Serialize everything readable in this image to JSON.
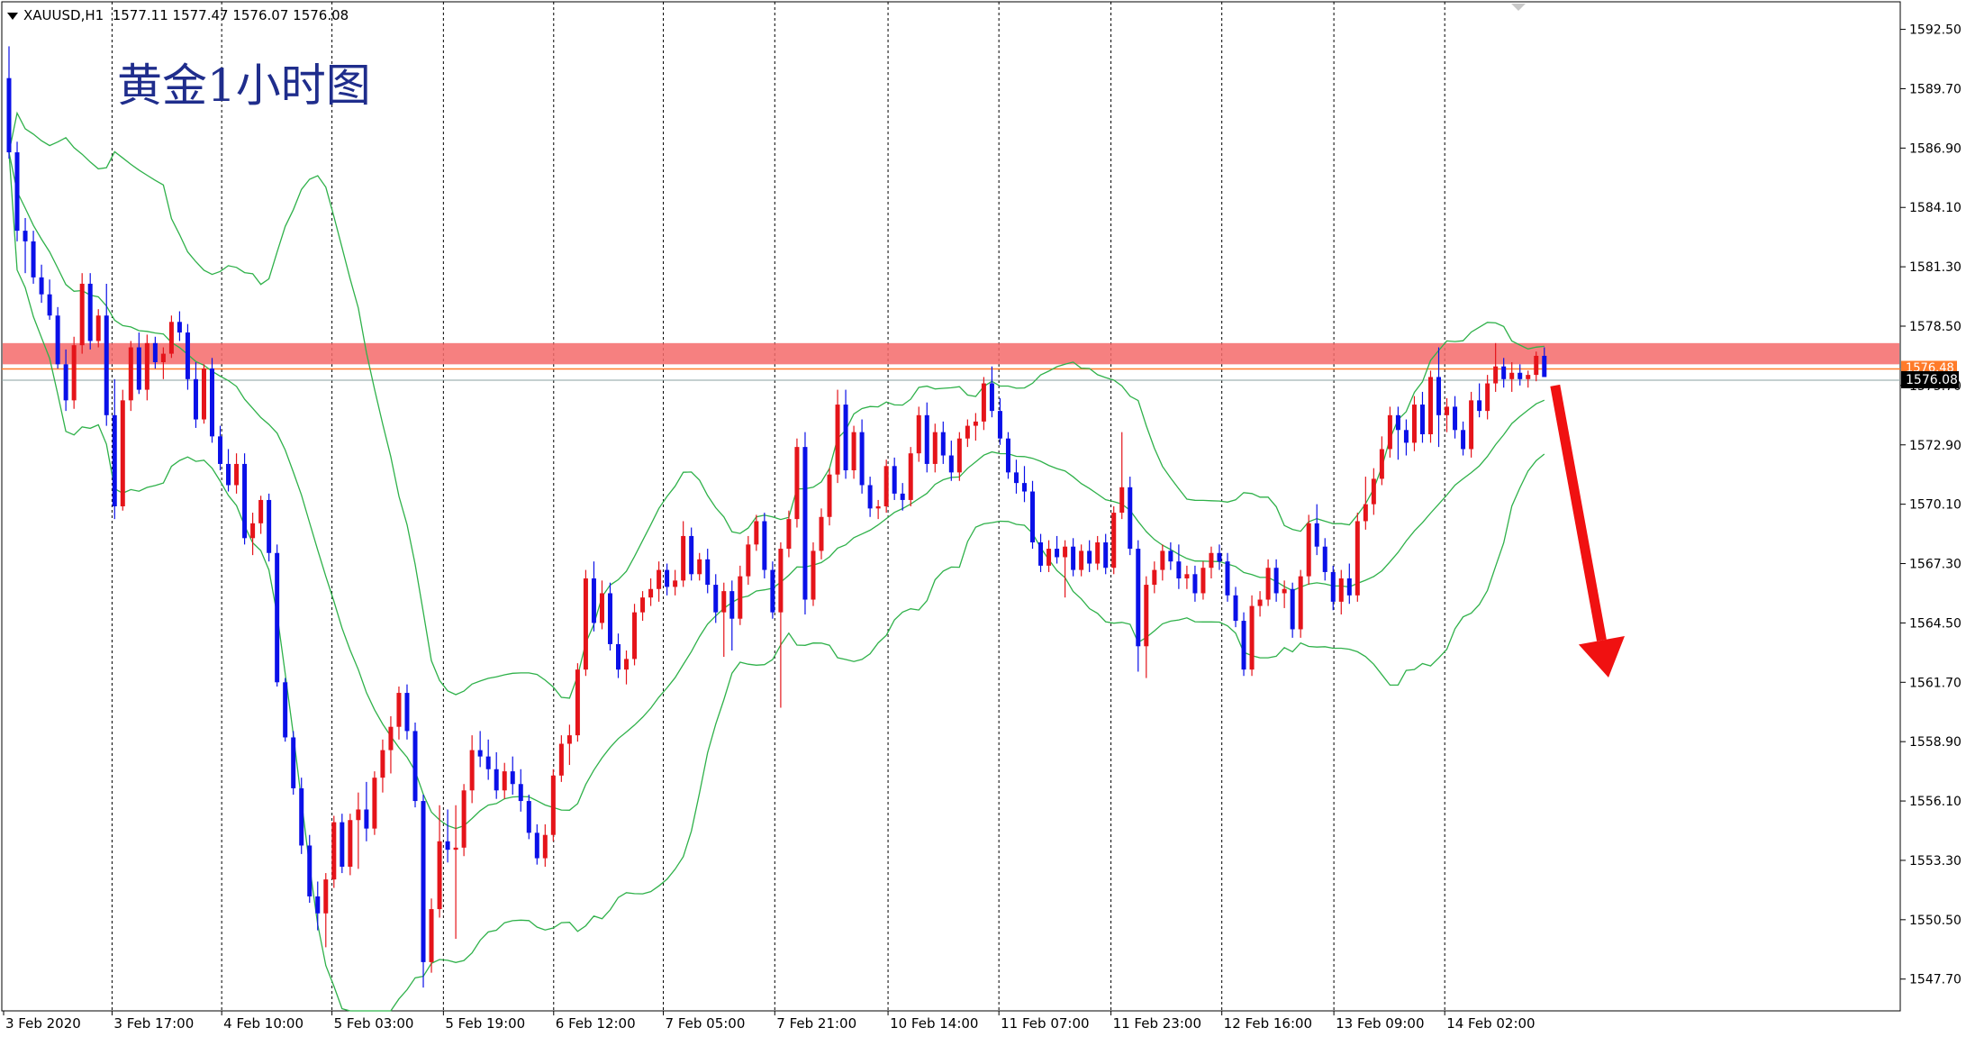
{
  "header": {
    "symbol": "XAUUSD,H1",
    "open": "1577.11",
    "high": "1577.47",
    "low": "1576.07",
    "close": "1576.08"
  },
  "annotation_text": "黄金1小时图",
  "colors": {
    "bull": "#e5141a",
    "bear": "#0a10e8",
    "band": "#2fb14a",
    "zone": "#f46a6a",
    "arrow": "#f01111",
    "grid": "#000000",
    "price_tag_bg": "#000000",
    "price_tag_fg": "#ffffff",
    "orange_line": "#ff7b2a"
  },
  "chart_data": {
    "type": "candlestick",
    "yaxis_ticks": [
      "1592.50",
      "1589.70",
      "1586.90",
      "1584.10",
      "1581.30",
      "1578.50",
      "1575.70",
      "1572.90",
      "1570.10",
      "1567.30",
      "1564.50",
      "1561.70",
      "1558.90",
      "1556.10",
      "1553.30",
      "1550.50",
      "1547.70"
    ],
    "ylim": [
      1546.2,
      1593.8
    ],
    "xaxis_ticks": [
      "3 Feb 2020",
      "3 Feb 17:00",
      "4 Feb 10:00",
      "5 Feb 03:00",
      "5 Feb 19:00",
      "6 Feb 12:00",
      "7 Feb 05:00",
      "7 Feb 21:00",
      "10 Feb 14:00",
      "11 Feb 07:00",
      "11 Feb 23:00",
      "12 Feb 16:00",
      "13 Feb 09:00",
      "14 Feb 02:00"
    ],
    "current_price": "1576.08",
    "upper_price_tag": "1576.48",
    "resistance_zone": [
      1576.7,
      1577.7
    ],
    "projected_direction": "down",
    "candles": [
      [
        1590.2,
        1591.7,
        1586.4,
        1586.7
      ],
      [
        1586.7,
        1587.2,
        1582.5,
        1583.0
      ],
      [
        1583.0,
        1583.6,
        1581.0,
        1582.5
      ],
      [
        1582.5,
        1583.0,
        1580.5,
        1580.8
      ],
      [
        1580.8,
        1581.4,
        1579.6,
        1580.0
      ],
      [
        1580.0,
        1580.7,
        1578.8,
        1579.0
      ],
      [
        1579.0,
        1579.4,
        1576.5,
        1576.7
      ],
      [
        1576.7,
        1577.4,
        1574.5,
        1575.0
      ],
      [
        1575.0,
        1578.0,
        1574.6,
        1577.6
      ],
      [
        1577.6,
        1581.0,
        1577.2,
        1580.5
      ],
      [
        1580.5,
        1581.0,
        1577.4,
        1577.8
      ],
      [
        1577.8,
        1579.3,
        1577.5,
        1579.0
      ],
      [
        1579.0,
        1580.5,
        1573.8,
        1574.3
      ],
      [
        1574.3,
        1576.0,
        1569.4,
        1570.0
      ],
      [
        1570.0,
        1575.5,
        1569.8,
        1575.0
      ],
      [
        1575.0,
        1577.8,
        1574.5,
        1577.5
      ],
      [
        1577.5,
        1578.2,
        1575.3,
        1575.5
      ],
      [
        1575.5,
        1578.1,
        1575.0,
        1577.7
      ],
      [
        1577.7,
        1578.0,
        1576.5,
        1576.8
      ],
      [
        1576.8,
        1577.5,
        1576.0,
        1577.2
      ],
      [
        1577.2,
        1579.0,
        1577.0,
        1578.7
      ],
      [
        1578.7,
        1579.2,
        1577.8,
        1578.2
      ],
      [
        1578.2,
        1578.6,
        1575.5,
        1576.0
      ],
      [
        1576.0,
        1576.8,
        1573.7,
        1574.1
      ],
      [
        1574.1,
        1576.7,
        1573.9,
        1576.5
      ],
      [
        1576.5,
        1577.0,
        1573.0,
        1573.3
      ],
      [
        1573.3,
        1573.8,
        1571.7,
        1572.0
      ],
      [
        1572.0,
        1572.7,
        1570.7,
        1571.0
      ],
      [
        1571.0,
        1572.5,
        1570.6,
        1572.0
      ],
      [
        1572.0,
        1572.5,
        1568.2,
        1568.5
      ],
      [
        1568.5,
        1569.7,
        1567.7,
        1569.2
      ],
      [
        1569.2,
        1570.5,
        1568.7,
        1570.3
      ],
      [
        1570.3,
        1570.6,
        1567.4,
        1567.8
      ],
      [
        1567.8,
        1568.2,
        1561.5,
        1561.7
      ],
      [
        1561.7,
        1561.9,
        1558.9,
        1559.1
      ],
      [
        1559.1,
        1559.4,
        1556.4,
        1556.7
      ],
      [
        1556.7,
        1557.2,
        1553.6,
        1554.0
      ],
      [
        1554.0,
        1554.5,
        1551.3,
        1551.6
      ],
      [
        1551.6,
        1552.3,
        1550.0,
        1550.8
      ],
      [
        1550.8,
        1552.7,
        1549.2,
        1552.4
      ],
      [
        1552.4,
        1555.4,
        1552.0,
        1555.1
      ],
      [
        1555.1,
        1555.5,
        1552.7,
        1553.0
      ],
      [
        1553.0,
        1555.5,
        1552.6,
        1555.2
      ],
      [
        1555.2,
        1556.5,
        1552.9,
        1555.7
      ],
      [
        1555.7,
        1557.0,
        1554.2,
        1554.8
      ],
      [
        1554.8,
        1557.5,
        1554.5,
        1557.2
      ],
      [
        1557.2,
        1559.0,
        1556.5,
        1558.5
      ],
      [
        1558.5,
        1560.1,
        1557.4,
        1559.6
      ],
      [
        1559.6,
        1561.5,
        1559.0,
        1561.2
      ],
      [
        1561.2,
        1561.6,
        1559.0,
        1559.4
      ],
      [
        1559.4,
        1559.8,
        1555.8,
        1556.1
      ],
      [
        1556.1,
        1556.4,
        1547.3,
        1548.5
      ],
      [
        1548.5,
        1551.5,
        1548.0,
        1551.0
      ],
      [
        1551.0,
        1555.9,
        1550.6,
        1554.2
      ],
      [
        1554.2,
        1555.7,
        1553.2,
        1553.8
      ],
      [
        1553.8,
        1555.9,
        1549.6,
        1553.9
      ],
      [
        1553.9,
        1556.9,
        1553.5,
        1556.6
      ],
      [
        1556.6,
        1559.2,
        1556.0,
        1558.5
      ],
      [
        1558.5,
        1559.4,
        1557.7,
        1558.2
      ],
      [
        1558.2,
        1559.0,
        1557.1,
        1557.6
      ],
      [
        1557.6,
        1558.4,
        1556.2,
        1556.6
      ],
      [
        1556.6,
        1557.9,
        1556.2,
        1557.5
      ],
      [
        1557.5,
        1558.2,
        1556.4,
        1556.9
      ],
      [
        1556.9,
        1557.6,
        1555.6,
        1556.1
      ],
      [
        1556.1,
        1556.4,
        1554.3,
        1554.6
      ],
      [
        1554.6,
        1555.0,
        1553.1,
        1553.4
      ],
      [
        1553.4,
        1555.0,
        1553.0,
        1554.5
      ],
      [
        1554.5,
        1557.6,
        1554.2,
        1557.3
      ],
      [
        1557.3,
        1559.2,
        1557.0,
        1558.8
      ],
      [
        1558.8,
        1559.7,
        1557.8,
        1559.2
      ],
      [
        1559.2,
        1562.6,
        1558.9,
        1562.3
      ],
      [
        1562.3,
        1567.0,
        1562.0,
        1566.6
      ],
      [
        1566.6,
        1567.4,
        1564.1,
        1564.5
      ],
      [
        1564.5,
        1566.5,
        1564.2,
        1565.9
      ],
      [
        1565.9,
        1566.4,
        1563.2,
        1563.5
      ],
      [
        1563.5,
        1564.0,
        1561.9,
        1562.3
      ],
      [
        1562.3,
        1563.2,
        1561.6,
        1562.8
      ],
      [
        1562.8,
        1565.4,
        1562.5,
        1565.0
      ],
      [
        1565.0,
        1566.0,
        1564.6,
        1565.7
      ],
      [
        1565.7,
        1566.6,
        1565.3,
        1566.1
      ],
      [
        1566.1,
        1567.4,
        1565.5,
        1567.0
      ],
      [
        1567.0,
        1567.3,
        1565.8,
        1566.2
      ],
      [
        1566.2,
        1567.0,
        1565.8,
        1566.5
      ],
      [
        1566.5,
        1569.3,
        1566.2,
        1568.6
      ],
      [
        1568.6,
        1569.0,
        1566.5,
        1566.8
      ],
      [
        1566.8,
        1567.8,
        1566.5,
        1567.5
      ],
      [
        1567.5,
        1568.0,
        1565.9,
        1566.3
      ],
      [
        1566.3,
        1566.8,
        1564.5,
        1565.0
      ],
      [
        1565.0,
        1566.4,
        1562.9,
        1566.0
      ],
      [
        1566.0,
        1566.5,
        1563.2,
        1564.7
      ],
      [
        1564.7,
        1567.2,
        1564.4,
        1566.7
      ],
      [
        1566.7,
        1568.6,
        1566.3,
        1568.2
      ],
      [
        1568.2,
        1569.6,
        1567.9,
        1569.3
      ],
      [
        1569.3,
        1569.7,
        1566.6,
        1567.0
      ],
      [
        1567.0,
        1567.4,
        1564.7,
        1565.0
      ],
      [
        1565.0,
        1568.3,
        1560.5,
        1568.0
      ],
      [
        1568.0,
        1569.8,
        1567.6,
        1569.4
      ],
      [
        1569.4,
        1573.2,
        1569.0,
        1572.8
      ],
      [
        1572.8,
        1573.5,
        1564.9,
        1565.6
      ],
      [
        1565.6,
        1568.3,
        1565.3,
        1567.9
      ],
      [
        1567.9,
        1569.9,
        1567.5,
        1569.5
      ],
      [
        1569.5,
        1571.8,
        1569.1,
        1571.5
      ],
      [
        1571.5,
        1575.5,
        1571.1,
        1574.8
      ],
      [
        1574.8,
        1575.5,
        1571.3,
        1571.7
      ],
      [
        1571.7,
        1573.8,
        1571.3,
        1573.5
      ],
      [
        1573.5,
        1574.1,
        1570.6,
        1571.0
      ],
      [
        1571.0,
        1571.4,
        1569.5,
        1569.9
      ],
      [
        1569.9,
        1570.3,
        1569.4,
        1570.0
      ],
      [
        1570.0,
        1572.2,
        1569.7,
        1571.9
      ],
      [
        1571.9,
        1572.3,
        1570.3,
        1570.6
      ],
      [
        1570.6,
        1571.1,
        1569.8,
        1570.3
      ],
      [
        1570.3,
        1572.8,
        1570.0,
        1572.5
      ],
      [
        1572.5,
        1574.7,
        1572.1,
        1574.3
      ],
      [
        1574.3,
        1574.9,
        1571.6,
        1572.0
      ],
      [
        1572.0,
        1573.9,
        1571.6,
        1573.5
      ],
      [
        1573.5,
        1574.0,
        1572.0,
        1572.4
      ],
      [
        1572.4,
        1573.1,
        1571.2,
        1571.6
      ],
      [
        1571.6,
        1573.5,
        1571.2,
        1573.2
      ],
      [
        1573.2,
        1574.1,
        1572.8,
        1573.8
      ],
      [
        1573.8,
        1574.4,
        1573.1,
        1574.0
      ],
      [
        1574.0,
        1576.1,
        1573.6,
        1575.8
      ],
      [
        1575.8,
        1576.6,
        1574.2,
        1574.5
      ],
      [
        1574.5,
        1575.1,
        1572.9,
        1573.2
      ],
      [
        1573.2,
        1573.5,
        1571.3,
        1571.6
      ],
      [
        1571.6,
        1572.2,
        1570.6,
        1571.1
      ],
      [
        1571.1,
        1571.9,
        1570.2,
        1570.7
      ],
      [
        1570.7,
        1571.2,
        1568.0,
        1568.3
      ],
      [
        1568.3,
        1568.7,
        1566.9,
        1567.2
      ],
      [
        1567.2,
        1568.4,
        1566.9,
        1568.0
      ],
      [
        1568.0,
        1568.6,
        1567.3,
        1567.6
      ],
      [
        1567.6,
        1568.4,
        1565.7,
        1568.1
      ],
      [
        1568.1,
        1568.5,
        1566.7,
        1567.0
      ],
      [
        1567.0,
        1568.2,
        1566.7,
        1567.9
      ],
      [
        1567.9,
        1568.4,
        1566.9,
        1567.3
      ],
      [
        1567.3,
        1568.6,
        1567.0,
        1568.3
      ],
      [
        1568.3,
        1568.7,
        1566.8,
        1567.1
      ],
      [
        1567.1,
        1570.0,
        1566.8,
        1569.7
      ],
      [
        1569.7,
        1573.5,
        1569.4,
        1570.9
      ],
      [
        1570.9,
        1571.4,
        1567.7,
        1568.0
      ],
      [
        1568.0,
        1568.4,
        1562.2,
        1563.4
      ],
      [
        1563.4,
        1566.7,
        1561.9,
        1566.3
      ],
      [
        1566.3,
        1567.4,
        1565.9,
        1567.0
      ],
      [
        1567.0,
        1568.2,
        1566.5,
        1567.9
      ],
      [
        1567.9,
        1568.3,
        1567.0,
        1567.4
      ],
      [
        1567.4,
        1568.2,
        1566.1,
        1566.6
      ],
      [
        1566.6,
        1567.2,
        1566.1,
        1566.8
      ],
      [
        1566.8,
        1567.2,
        1565.5,
        1565.9
      ],
      [
        1565.9,
        1567.4,
        1565.6,
        1567.1
      ],
      [
        1567.1,
        1568.1,
        1566.6,
        1567.8
      ],
      [
        1567.8,
        1568.2,
        1567.0,
        1567.4
      ],
      [
        1567.4,
        1567.8,
        1565.5,
        1565.8
      ],
      [
        1565.8,
        1566.2,
        1564.3,
        1564.6
      ],
      [
        1564.6,
        1565.0,
        1562.0,
        1562.3
      ],
      [
        1562.3,
        1565.8,
        1562.0,
        1565.3
      ],
      [
        1565.3,
        1566.0,
        1564.8,
        1565.6
      ],
      [
        1565.6,
        1567.5,
        1565.3,
        1567.1
      ],
      [
        1567.1,
        1567.5,
        1565.5,
        1565.9
      ],
      [
        1565.9,
        1566.5,
        1565.2,
        1566.1
      ],
      [
        1566.1,
        1566.4,
        1563.8,
        1564.2
      ],
      [
        1564.2,
        1567.0,
        1563.8,
        1566.7
      ],
      [
        1566.7,
        1569.6,
        1566.3,
        1569.2
      ],
      [
        1569.2,
        1570.1,
        1567.7,
        1568.1
      ],
      [
        1568.1,
        1568.5,
        1566.5,
        1566.9
      ],
      [
        1566.9,
        1567.2,
        1565.1,
        1565.5
      ],
      [
        1565.5,
        1567.0,
        1564.9,
        1566.6
      ],
      [
        1566.6,
        1567.3,
        1565.4,
        1565.8
      ],
      [
        1565.8,
        1569.7,
        1565.5,
        1569.3
      ],
      [
        1569.3,
        1571.4,
        1568.9,
        1570.1
      ],
      [
        1570.1,
        1571.8,
        1569.6,
        1571.3
      ],
      [
        1571.3,
        1573.3,
        1571.0,
        1572.7
      ],
      [
        1572.7,
        1574.7,
        1572.3,
        1574.3
      ],
      [
        1574.3,
        1574.7,
        1572.2,
        1573.6
      ],
      [
        1573.6,
        1574.1,
        1572.4,
        1573.0
      ],
      [
        1573.0,
        1575.2,
        1572.6,
        1574.8
      ],
      [
        1574.8,
        1575.4,
        1573.0,
        1573.4
      ],
      [
        1573.4,
        1576.4,
        1573.0,
        1576.1
      ],
      [
        1576.1,
        1577.5,
        1572.8,
        1574.3
      ],
      [
        1574.3,
        1575.1,
        1573.5,
        1574.7
      ],
      [
        1574.7,
        1575.2,
        1573.2,
        1573.6
      ],
      [
        1573.6,
        1574.0,
        1572.4,
        1572.7
      ],
      [
        1572.7,
        1575.4,
        1572.3,
        1575.0
      ],
      [
        1575.0,
        1575.8,
        1574.2,
        1574.5
      ],
      [
        1574.5,
        1576.2,
        1574.1,
        1575.8
      ],
      [
        1575.8,
        1577.7,
        1575.4,
        1576.6
      ],
      [
        1576.6,
        1577.0,
        1575.6,
        1576.0
      ],
      [
        1576.0,
        1576.8,
        1575.4,
        1576.3
      ],
      [
        1576.3,
        1576.7,
        1575.7,
        1576.0
      ],
      [
        1576.0,
        1576.4,
        1575.6,
        1576.2
      ],
      [
        1576.2,
        1577.3,
        1575.9,
        1577.1
      ],
      [
        1577.1,
        1577.5,
        1576.1,
        1576.1
      ]
    ]
  }
}
